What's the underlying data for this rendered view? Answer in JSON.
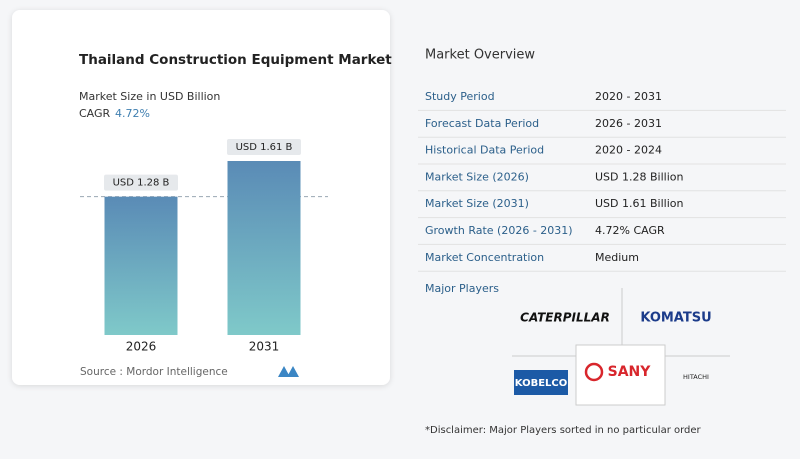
{
  "chart_data": {
    "type": "bar",
    "title": "Thailand Construction Equipment Market",
    "subtitle": "Market Size in USD Billion",
    "cagr_label": "CAGR",
    "cagr_value": "4.72%",
    "categories": [
      "2026",
      "2031"
    ],
    "values": [
      1.28,
      1.61
    ],
    "value_labels": [
      "USD 1.28 B",
      "USD 1.61 B"
    ],
    "colors": [
      "#5a8bb6",
      "#7fc9c9"
    ],
    "reference_line": true,
    "source": "Source :  Mordor Intelligence"
  },
  "overview": {
    "title": "Market Overview",
    "rows": [
      [
        "Study Period",
        "2020 - 2031"
      ],
      [
        "Forecast Data Period",
        "2026 - 2031"
      ],
      [
        "Historical Data Period",
        "2020 - 2024"
      ],
      [
        "Market Size (2026)",
        "USD 1.28 Billion"
      ],
      [
        "Market Size (2031)",
        "USD 1.61 Billion"
      ],
      [
        "Growth Rate (2026 - 2031)",
        "4.72% CAGR"
      ],
      [
        "Market Concentration",
        "Medium"
      ]
    ]
  },
  "players": {
    "title": "Major Players",
    "names": [
      "CATERPILLAR",
      "KOMATSU",
      "SANY",
      "KOBELCO",
      "HITACHI"
    ]
  },
  "disclaimer": "*Disclaimer: Major Players sorted in no particular order"
}
